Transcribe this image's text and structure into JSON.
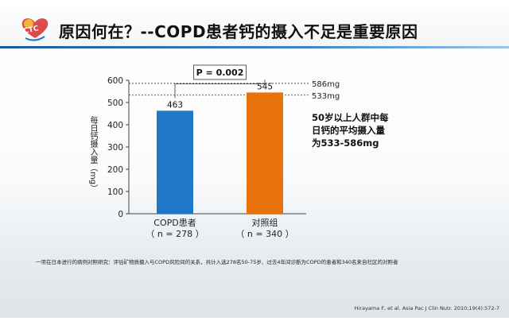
{
  "slide": {
    "title": "原因何在？--COPD患者钙的摄入不足是重要原因",
    "callout_lines": [
      "50岁以上人群中每",
      "日钙的平均摄入量",
      "为533-586mg"
    ],
    "footnote": "一项在日本进行的病例对照研究：评估矿物质摄入与COPD风险间的关系，共计入选278名50-75岁、过去4年间诊断为COPD的患者和340名来自社区的对照者",
    "citation": "Hirayama F, et al. Asia Pac J Clin Nutr. 2010;19(4):572-7"
  },
  "colors": {
    "copd_bar": "#1f77c9",
    "control_bar": "#e8720c",
    "title_rule": "#2e74b5",
    "logo_red": "#d92b2b",
    "logo_yellow": "#f2c12e"
  },
  "chart_data": {
    "type": "bar",
    "ylabel": "每日钙摄入量（mg）",
    "ylim": [
      0,
      600
    ],
    "yticks": [
      "0",
      "100",
      "200",
      "300",
      "400",
      "500",
      "600"
    ],
    "categories": [
      {
        "name": "COPD患者",
        "n": "（ n = 278 ）"
      },
      {
        "name": "对照组",
        "n": "（ n = 340 ）"
      }
    ],
    "values": [
      463,
      545
    ],
    "value_labels": [
      "463",
      "545"
    ],
    "significance": "P = 0.002",
    "reference_lines": [
      {
        "value": 586,
        "label": "586mg"
      },
      {
        "value": 533,
        "label": "533mg"
      }
    ],
    "grid": false
  }
}
